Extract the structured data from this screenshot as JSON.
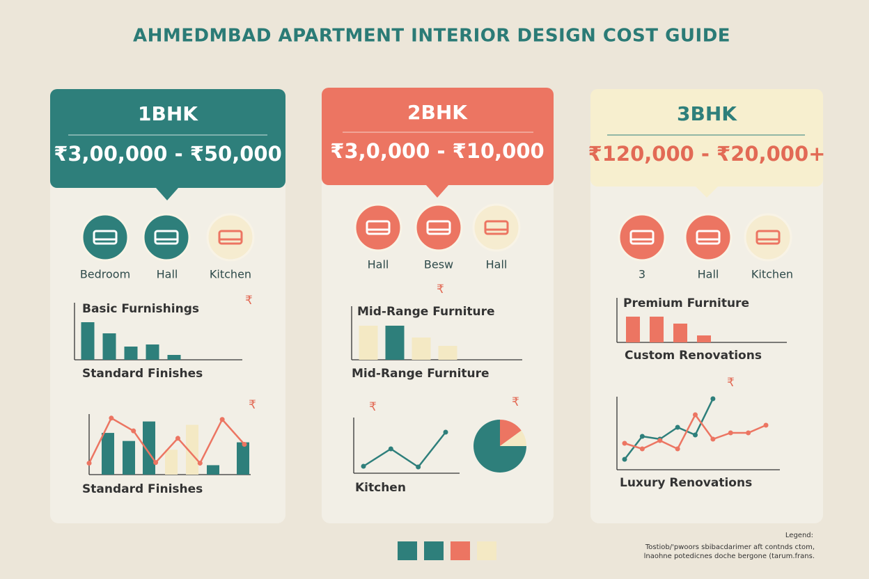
{
  "title": "AHMEDMBAD APARTMENT INTERIOR DESIGN COST GUIDE",
  "cards": [
    {
      "heading": "1BHK",
      "price": "₹3,00,000 - ₹50,000",
      "rooms": [
        "Bedroom",
        "Hall",
        "Kitchen"
      ],
      "charts": [
        {
          "type": "bar",
          "label": "Basic Furnishings",
          "symbol": "₹",
          "caption": "Standard Finishes",
          "values": [
            54,
            38,
            19,
            22,
            7
          ],
          "colors": [
            "#2e7f7b",
            "#2e7f7b",
            "#2e7f7b",
            "#2e7f7b",
            "#2e7f7b"
          ],
          "ylim": [
            0,
            82
          ]
        },
        {
          "type": "bar-line",
          "symbol": "₹",
          "caption": "Standard Finishes",
          "values": [
            62,
            50,
            79,
            37,
            74,
            14,
            48
          ],
          "colors": [
            "#2e7f7b",
            "#2e7f7b",
            "#2e7f7b",
            "#f4e9c4",
            "#f4e9c4",
            "#2e7f7b",
            "#2e7f7b"
          ],
          "series": [
            {
              "color": "#ec7562",
              "values": [
                17,
                84,
                65,
                18,
                54,
                17,
                82,
                45
              ]
            }
          ],
          "ylim": [
            0,
            90
          ]
        }
      ]
    },
    {
      "heading": "2BHK",
      "price": "₹3,0,000 - ₹10,000",
      "rooms": [
        "Hall",
        "Besw",
        "Hall"
      ],
      "charts": [
        {
          "type": "bar",
          "label": "Mid-Range Furniture",
          "symbol": "₹",
          "caption": "Mid-Range Furniture",
          "values": [
            49,
            49,
            32,
            20
          ],
          "colors": [
            "#f4e9c4",
            "#2e7f7b",
            "#f4e9c4",
            "#f4e9c4"
          ],
          "ylim": [
            0,
            77
          ]
        },
        {
          "type": "line",
          "symbol": "₹",
          "caption": "Kitchen",
          "series": [
            {
              "color": "#2e7f7b",
              "values": [
                10,
                35,
                9,
                59
              ]
            }
          ],
          "ylim": [
            0,
            80
          ]
        },
        {
          "type": "pie",
          "symbol": "₹",
          "values": [
            75,
            15,
            10
          ],
          "colors": [
            "#2e7f7b",
            "#ec7562",
            "#f4e9c4"
          ]
        }
      ]
    },
    {
      "heading": "3BHK",
      "price": "₹120,000 - ₹20,000+",
      "rooms": [
        "3",
        "Hall",
        "Kitchen"
      ],
      "charts": [
        {
          "type": "bar",
          "label": "Premium Furniture",
          "caption": "Custom Renovations",
          "values": [
            37,
            37,
            27,
            10
          ],
          "colors": [
            "#ec7562",
            "#ec7562",
            "#ec7562",
            "#ec7562"
          ],
          "ylim": [
            0,
            64
          ]
        },
        {
          "type": "line",
          "symbol": "₹",
          "caption": "Luxury Renovations",
          "series": [
            {
              "color": "#2e7f7b",
              "values": [
                15,
                48,
                44,
                61,
                50,
                102
              ]
            },
            {
              "color": "#ec7562",
              "values": [
                38,
                30,
                42,
                30,
                79,
                44,
                53,
                53,
                64
              ]
            }
          ],
          "ylim": [
            0,
            105
          ]
        }
      ]
    }
  ],
  "legend": {
    "title": "Legend:",
    "colors": [
      "#2e7f7b",
      "#2e7f7b",
      "#ec7562",
      "#f4e9c4"
    ],
    "lines": [
      "Tostiob/'pwoors sbibacdarimer aft contnds ctom,",
      "lnaohne potedicnes doche bergone (tarum.frans."
    ]
  }
}
